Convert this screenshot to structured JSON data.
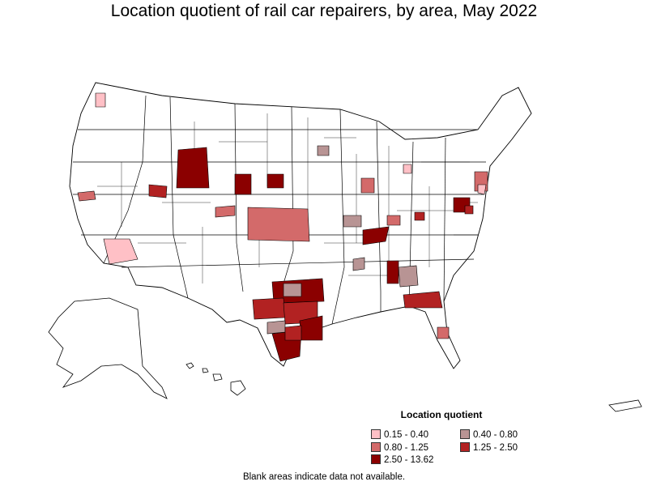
{
  "title": "Location quotient of rail car repairers, by area, May 2022",
  "legend": {
    "title": "Location quotient",
    "items": [
      {
        "label": "0.15 - 0.40",
        "color": "#ffc0c6"
      },
      {
        "label": "0.40 - 0.80",
        "color": "#b89494"
      },
      {
        "label": "0.80 - 1.25",
        "color": "#d36a6a"
      },
      {
        "label": "1.25 - 2.50",
        "color": "#b22222"
      },
      {
        "label": "2.50 - 13.62",
        "color": "#8b0000"
      }
    ]
  },
  "footnote": "Blank areas indicate data not available."
}
